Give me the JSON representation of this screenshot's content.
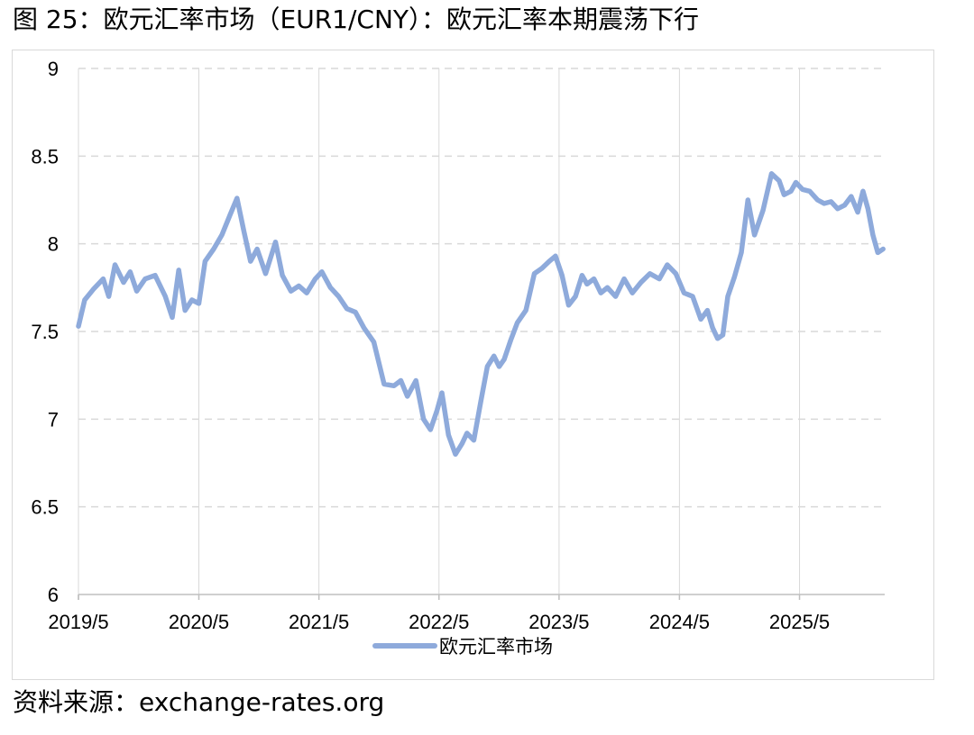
{
  "figure": {
    "title": "图 25：欧元汇率市场（EUR1/CNY）：欧元汇率本期震荡下行",
    "source": "资料来源：exchange-rates.org"
  },
  "colors": {
    "series": "#8eaadb",
    "grid": "#d9d9d9",
    "axis": "#bfbfbf"
  },
  "chart_data": {
    "type": "line",
    "ylim": [
      6,
      9
    ],
    "yticks": [
      "6",
      "6.5",
      "7",
      "7.5",
      "8",
      "8.5",
      "9"
    ],
    "ytick_values": [
      6,
      6.5,
      7,
      7.5,
      8,
      8.5,
      9
    ],
    "xticks": [
      "2019/5",
      "2020/5",
      "2021/5",
      "2022/5",
      "2023/5",
      "2024/5",
      "2025/5"
    ],
    "xlim": [
      "2019-05-01",
      "2026-01-15"
    ],
    "grid": "horizontal dashed",
    "legend": "bottom-center",
    "series": [
      {
        "name": "欧元汇率市场",
        "x": [
          "2019-05-01",
          "2019-05-20",
          "2019-06-15",
          "2019-07-15",
          "2019-08-01",
          "2019-08-20",
          "2019-09-15",
          "2019-10-05",
          "2019-10-25",
          "2019-11-20",
          "2019-12-20",
          "2020-01-20",
          "2020-02-10",
          "2020-03-01",
          "2020-03-20",
          "2020-04-10",
          "2020-05-01",
          "2020-05-20",
          "2020-06-15",
          "2020-07-10",
          "2020-08-05",
          "2020-08-25",
          "2020-09-15",
          "2020-10-05",
          "2020-10-25",
          "2020-11-20",
          "2020-12-20",
          "2021-01-10",
          "2021-02-05",
          "2021-03-01",
          "2021-03-25",
          "2021-04-20",
          "2021-05-10",
          "2021-06-05",
          "2021-06-30",
          "2021-07-25",
          "2021-08-20",
          "2021-09-15",
          "2021-10-15",
          "2021-11-15",
          "2021-12-15",
          "2022-01-05",
          "2022-01-25",
          "2022-02-20",
          "2022-03-15",
          "2022-04-05",
          "2022-04-25",
          "2022-05-10",
          "2022-05-30",
          "2022-06-20",
          "2022-07-10",
          "2022-07-25",
          "2022-08-15",
          "2022-09-05",
          "2022-09-25",
          "2022-10-15",
          "2022-10-31",
          "2022-11-15",
          "2022-12-05",
          "2022-12-25",
          "2023-01-20",
          "2023-02-15",
          "2023-03-10",
          "2023-04-01",
          "2023-04-20",
          "2023-05-10",
          "2023-05-30",
          "2023-06-20",
          "2023-07-10",
          "2023-07-25",
          "2023-08-15",
          "2023-09-05",
          "2023-09-25",
          "2023-10-20",
          "2023-11-15",
          "2023-12-10",
          "2024-01-05",
          "2024-02-01",
          "2024-03-01",
          "2024-03-25",
          "2024-04-20",
          "2024-05-15",
          "2024-06-10",
          "2024-07-05",
          "2024-07-25",
          "2024-08-10",
          "2024-08-25",
          "2024-09-10",
          "2024-09-25",
          "2024-10-15",
          "2024-11-05",
          "2024-11-25",
          "2024-12-15",
          "2025-01-10",
          "2025-02-05",
          "2025-02-28",
          "2025-03-15",
          "2025-04-05",
          "2025-04-20",
          "2025-05-10",
          "2025-06-01",
          "2025-06-25",
          "2025-07-15",
          "2025-08-05",
          "2025-08-25",
          "2025-09-15",
          "2025-10-05",
          "2025-10-25",
          "2025-11-10",
          "2025-11-25",
          "2025-12-10",
          "2025-12-25",
          "2026-01-10"
        ],
        "values": [
          7.53,
          7.68,
          7.74,
          7.8,
          7.7,
          7.88,
          7.78,
          7.84,
          7.73,
          7.8,
          7.82,
          7.7,
          7.58,
          7.85,
          7.62,
          7.68,
          7.66,
          7.9,
          7.97,
          8.05,
          8.17,
          8.26,
          8.07,
          7.9,
          7.97,
          7.83,
          8.01,
          7.82,
          7.73,
          7.76,
          7.72,
          7.8,
          7.84,
          7.75,
          7.7,
          7.63,
          7.61,
          7.52,
          7.44,
          7.2,
          7.19,
          7.22,
          7.13,
          7.22,
          7.0,
          6.94,
          7.05,
          7.15,
          6.91,
          6.8,
          6.86,
          6.92,
          6.88,
          7.1,
          7.3,
          7.36,
          7.3,
          7.34,
          7.45,
          7.55,
          7.62,
          7.83,
          7.86,
          7.9,
          7.93,
          7.82,
          7.65,
          7.7,
          7.82,
          7.77,
          7.8,
          7.72,
          7.75,
          7.7,
          7.8,
          7.72,
          7.78,
          7.83,
          7.8,
          7.88,
          7.83,
          7.72,
          7.7,
          7.57,
          7.62,
          7.52,
          7.46,
          7.48,
          7.7,
          7.81,
          7.95,
          8.25,
          8.05,
          8.19,
          8.4,
          8.36,
          8.28,
          8.3,
          8.35,
          8.31,
          8.3,
          8.25,
          8.23,
          8.24,
          8.2,
          8.22,
          8.27,
          8.18,
          8.3,
          8.2,
          8.05,
          7.95,
          7.97
        ]
      }
    ]
  }
}
